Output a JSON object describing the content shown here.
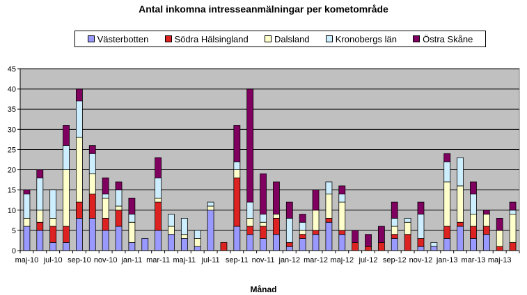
{
  "chart_data": {
    "type": "bar",
    "stacked": true,
    "title": "Antal inkomna intresseanmälningar per kometområde",
    "xlabel": "Månad",
    "ylabel": "",
    "ylim": [
      0,
      45
    ],
    "yticks": [
      0,
      5,
      10,
      15,
      20,
      25,
      30,
      35,
      40,
      45
    ],
    "grid": true,
    "legend_position": "top",
    "categories": [
      "maj-10",
      "jun-10",
      "jul-10",
      "aug-10",
      "sep-10",
      "okt-10",
      "nov-10",
      "dec-10",
      "jan-11",
      "feb-11",
      "mar-11",
      "apr-11",
      "maj-11",
      "jun-11",
      "jul-11",
      "aug-11",
      "sep-11",
      "okt-11",
      "nov-11",
      "dec-11",
      "jan-12",
      "feb-12",
      "mar-12",
      "apr-12",
      "maj-12",
      "jun-12",
      "jul-12",
      "aug-12",
      "sep-12",
      "okt-12",
      "nov-12",
      "dec-12",
      "jan-13",
      "feb-13",
      "mar-13",
      "apr-13",
      "maj-13",
      "jun-13"
    ],
    "tick_labels": [
      "maj-10",
      "",
      "jul-10",
      "",
      "sep-10",
      "",
      "nov-10",
      "",
      "jan-11",
      "",
      "mar-11",
      "",
      "maj-11",
      "",
      "jul-11",
      "",
      "sep-11",
      "",
      "nov-11",
      "",
      "jan-12",
      "",
      "mar-12",
      "",
      "maj-12",
      "",
      "jul-12",
      "",
      "sep-12",
      "",
      "nov-12",
      "",
      "jan-13",
      "",
      "mar-13",
      "",
      "maj-13",
      ""
    ],
    "series": [
      {
        "name": "Västerbotten",
        "color": "#9999ff",
        "values": [
          6,
          5,
          2,
          2,
          8,
          8,
          5,
          6,
          2,
          3,
          5,
          4,
          3,
          1,
          10,
          0,
          6,
          4,
          3,
          4,
          1,
          3,
          4,
          7,
          4,
          0,
          0,
          0,
          3,
          0,
          1,
          1,
          3,
          6,
          3,
          4,
          0,
          0
        ]
      },
      {
        "name": "Södra Hälsingland",
        "color": "#dd2222",
        "values": [
          0,
          2,
          4,
          4,
          4,
          6,
          3,
          4,
          0,
          0,
          7,
          0,
          0,
          0,
          0,
          2,
          12,
          2,
          3,
          4,
          1,
          1,
          1,
          1,
          1,
          2,
          1,
          2,
          1,
          4,
          2,
          0,
          3,
          1,
          3,
          2,
          1,
          2
        ]
      },
      {
        "name": "Dalsland",
        "color": "#ffffcc",
        "values": [
          2,
          3,
          2,
          14,
          16,
          5,
          5,
          1,
          5,
          0,
          1,
          2,
          1,
          2,
          1,
          0,
          2,
          2,
          1,
          1,
          0,
          1,
          5,
          6,
          7,
          0,
          0,
          0,
          2,
          3,
          0,
          0,
          11,
          9,
          3,
          3,
          4,
          7
        ]
      },
      {
        "name": "Kronobergs län",
        "color": "#cceeff",
        "values": [
          6,
          8,
          7,
          6,
          9,
          5,
          1,
          4,
          2,
          0,
          5,
          3,
          4,
          2,
          1,
          0,
          2,
          4,
          2,
          0,
          6,
          2,
          0,
          3,
          2,
          0,
          0,
          0,
          2,
          1,
          6,
          1,
          5,
          7,
          5,
          0,
          0,
          1
        ]
      },
      {
        "name": "Östra Skåne",
        "color": "#800060",
        "values": [
          1,
          2,
          0,
          5,
          3,
          2,
          4,
          2,
          4,
          0,
          5,
          0,
          0,
          0,
          0,
          0,
          9,
          28,
          10,
          8,
          4,
          2,
          5,
          0,
          2,
          3,
          3,
          4,
          4,
          0,
          3,
          0,
          2,
          0,
          3,
          1,
          3,
          2
        ]
      }
    ]
  },
  "colors": {
    "plot_background": "#c0c0c0",
    "gridline": "#000000",
    "bar_outline": "#000000"
  }
}
